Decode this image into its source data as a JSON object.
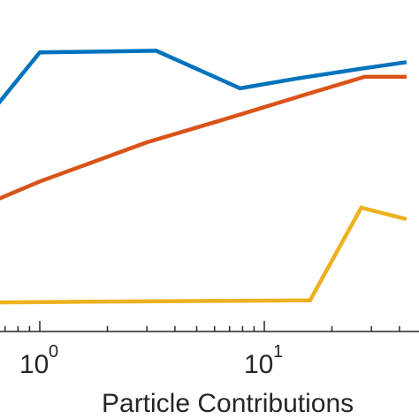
{
  "chart_data": {
    "type": "line",
    "xscale": "log",
    "xlabel": "Particle Contributions",
    "ylabel": "",
    "title": "",
    "xlim": [
      0.58,
      43
    ],
    "ylim": [
      0,
      1
    ],
    "grid": false,
    "x_ticks": [
      {
        "value": 1,
        "base": "10",
        "exponent": "0"
      },
      {
        "value": 10,
        "base": "10",
        "exponent": "1"
      }
    ],
    "series": [
      {
        "color": "#0072BD",
        "points": [
          [
            0.55,
            0.62
          ],
          [
            1.0,
            0.84
          ],
          [
            3.3,
            0.845
          ],
          [
            7.8,
            0.73
          ],
          [
            14,
            0.76
          ],
          [
            27,
            0.79
          ],
          [
            43,
            0.81
          ]
        ]
      },
      {
        "color": "#D95319",
        "points": [
          [
            0.55,
            0.37
          ],
          [
            1.0,
            0.445
          ],
          [
            3.0,
            0.565
          ],
          [
            7.0,
            0.64
          ],
          [
            16,
            0.715
          ],
          [
            28,
            0.765
          ],
          [
            43,
            0.765
          ]
        ]
      },
      {
        "color": "#EDB120",
        "points": [
          [
            0.55,
            0.075
          ],
          [
            2.0,
            0.078
          ],
          [
            6.0,
            0.08
          ],
          [
            16,
            0.082
          ],
          [
            27,
            0.365
          ],
          [
            43,
            0.33
          ]
        ]
      }
    ]
  }
}
